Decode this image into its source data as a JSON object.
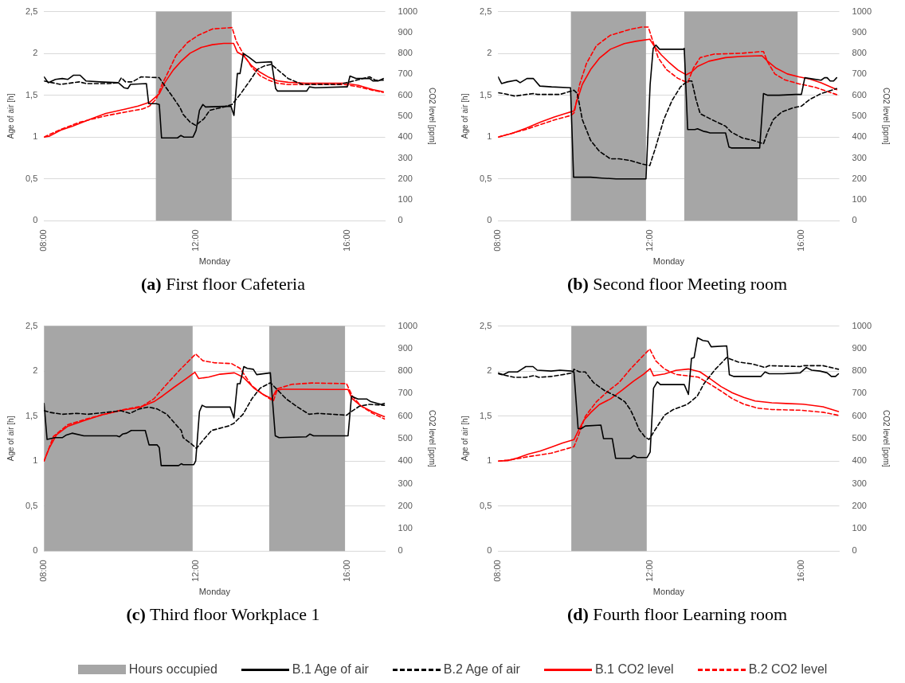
{
  "chart_data": [
    {
      "type": "line",
      "title": "(a) First floor Cafeteria",
      "xlabel": "Monday",
      "ylabel": "Age of air [h]",
      "y2label": "CO2 level [ppm]",
      "xlim": [
        8,
        17
      ],
      "xticks": [
        {
          "value": 8,
          "label": "08:00"
        },
        {
          "value": 12,
          "label": "12:00"
        },
        {
          "value": 16,
          "label": "16:00"
        }
      ],
      "ylim": [
        0,
        2.5
      ],
      "yticks": [
        0,
        {
          "value": 0.5,
          "label": "0,5"
        },
        1,
        {
          "value": 1.5,
          "label": "1,5"
        },
        2,
        {
          "value": 2.5,
          "label": "2,5"
        }
      ],
      "y2lim": [
        0,
        1000
      ],
      "y2ticks": [
        0,
        100,
        200,
        300,
        400,
        500,
        600,
        700,
        800,
        900,
        1000
      ],
      "grid": "y",
      "legend": "bottom",
      "bands": [
        {
          "axis": "x",
          "from": 10.95,
          "to": 12.95,
          "color": "#a6a6a6",
          "label": "Hours occupied"
        }
      ],
      "series": [
        {
          "name": "B.1 Age of air",
          "color": "#000000",
          "x": [
            8,
            8.11,
            8.3,
            8.48,
            8.63,
            8.78,
            8.95,
            9.11,
            9.48,
            9.96,
            10.11,
            10.21,
            10.28,
            10.7,
            10.76,
            10.96,
            11.04,
            11.1,
            11.52,
            11.61,
            11.69,
            11.93,
            12.01,
            12.1,
            12.19,
            12.26,
            12.93,
            13.01,
            13.1,
            13.17,
            13.26,
            13.42,
            13.59,
            14.0,
            14.11,
            14.16,
            14.93,
            15.0,
            15.15,
            15.93,
            16.0,
            16.07,
            16.24,
            16.59,
            16.68,
            16.81,
            16.95
          ],
          "values": [
            1.72,
            1.65,
            1.69,
            1.7,
            1.69,
            1.74,
            1.74,
            1.67,
            1.66,
            1.65,
            1.59,
            1.58,
            1.63,
            1.64,
            1.4,
            1.4,
            1.39,
            0.99,
            0.99,
            1.02,
            1.0,
            1.0,
            1.08,
            1.32,
            1.39,
            1.36,
            1.37,
            1.26,
            1.76,
            1.76,
            2.0,
            1.95,
            1.89,
            1.9,
            1.58,
            1.55,
            1.55,
            1.6,
            1.59,
            1.6,
            1.6,
            1.73,
            1.7,
            1.7,
            1.67,
            1.67,
            1.7
          ]
        },
        {
          "name": "B.2 Age of air",
          "color": "#000000",
          "line_style": "dashed",
          "x": [
            8,
            8.44,
            8.93,
            9.11,
            9.7,
            9.96,
            10.04,
            10.15,
            10.33,
            10.56,
            11.04,
            11.19,
            11.41,
            11.59,
            11.67,
            11.85,
            12.0,
            12.22,
            12.37,
            12.74,
            12.96,
            13.19,
            13.41,
            13.63,
            13.81,
            14.0,
            14.15,
            14.44,
            14.81,
            15.19,
            15.78,
            16.07,
            16.59,
            16.74,
            16.95
          ],
          "values": [
            1.67,
            1.63,
            1.66,
            1.64,
            1.64,
            1.65,
            1.71,
            1.66,
            1.66,
            1.72,
            1.71,
            1.61,
            1.47,
            1.35,
            1.27,
            1.18,
            1.14,
            1.22,
            1.32,
            1.36,
            1.39,
            1.52,
            1.66,
            1.81,
            1.85,
            1.87,
            1.81,
            1.7,
            1.63,
            1.63,
            1.63,
            1.66,
            1.72,
            1.68,
            1.68
          ]
        },
        {
          "name": "B.1 CO2 level",
          "color": "#ff0000",
          "axis": "y2",
          "x": [
            8,
            8.15,
            8.44,
            8.74,
            9.26,
            9.63,
            10.15,
            10.48,
            10.78,
            11.04,
            11.19,
            11.41,
            11.63,
            11.85,
            12.15,
            12.44,
            12.74,
            13.0,
            13.1,
            13.26,
            13.48,
            13.7,
            13.93,
            14.15,
            14.44,
            14.89,
            15.93,
            16.3,
            16.67,
            16.95
          ],
          "values": [
            400,
            405,
            433,
            451,
            488,
            513,
            534,
            548,
            566,
            607,
            662,
            721,
            765,
            801,
            829,
            842,
            848,
            848,
            806,
            790,
            741,
            710,
            686,
            669,
            662,
            658,
            658,
            647,
            627,
            617
          ]
        },
        {
          "name": "B.2 CO2 level",
          "color": "#ff0000",
          "line_style": "dashed",
          "axis": "y2",
          "x": [
            8,
            8.44,
            8.96,
            9.63,
            10.15,
            10.59,
            10.78,
            10.96,
            11.11,
            11.3,
            11.48,
            11.78,
            12.07,
            12.44,
            12.96,
            13.07,
            13.26,
            13.48,
            13.7,
            13.93,
            14.15,
            14.44,
            15.93,
            16.3,
            16.67,
            16.95
          ],
          "values": [
            400,
            437,
            472,
            502,
            520,
            534,
            548,
            582,
            651,
            721,
            790,
            852,
            887,
            917,
            924,
            859,
            797,
            734,
            693,
            672,
            658,
            651,
            651,
            640,
            624,
            614
          ]
        }
      ]
    },
    {
      "type": "line",
      "title": "(b) Second floor Meeting room",
      "xlabel": "Monday",
      "ylabel": "Age of air [h]",
      "y2label": "CO2 level [ppm]",
      "xlim": [
        8,
        17
      ],
      "xticks": [
        {
          "value": 8,
          "label": "08:00"
        },
        {
          "value": 12,
          "label": "12:00"
        },
        {
          "value": 16,
          "label": "16:00"
        }
      ],
      "ylim": [
        0,
        2.5
      ],
      "yticks": [
        0,
        {
          "value": 0.5,
          "label": "0,5"
        },
        1,
        {
          "value": 1.5,
          "label": "1,5"
        },
        2,
        {
          "value": 2.5,
          "label": "2,5"
        }
      ],
      "y2lim": [
        0,
        1000
      ],
      "y2ticks": [
        0,
        100,
        200,
        300,
        400,
        500,
        600,
        700,
        800,
        900,
        1000
      ],
      "grid": "y",
      "bands": [
        {
          "axis": "x",
          "from": 9.92,
          "to": 11.9,
          "color": "#a6a6a6"
        },
        {
          "axis": "x",
          "from": 12.91,
          "to": 15.9,
          "color": "#a6a6a6"
        }
      ],
      "series": [
        {
          "color": "#000000",
          "x": [
            8,
            8.09,
            8.24,
            8.48,
            8.58,
            8.76,
            8.93,
            9.1,
            9.41,
            9.91,
            9.99,
            10.44,
            10.74,
            11.11,
            11.9,
            12.01,
            12.09,
            12.16,
            12.26,
            12.89,
            12.91,
            13.0,
            13.19,
            13.26,
            13.41,
            13.52,
            13.59,
            14.0,
            14.09,
            14.15,
            14.9,
            15.0,
            15.11,
            15.41,
            15.85,
            16.0,
            16.09,
            16.22,
            16.52,
            16.61,
            16.68,
            16.76,
            16.85,
            16.93
          ],
          "values": [
            1.72,
            1.64,
            1.66,
            1.68,
            1.65,
            1.7,
            1.7,
            1.61,
            1.6,
            1.59,
            0.52,
            0.52,
            0.51,
            0.5,
            0.5,
            1.63,
            2.06,
            2.1,
            2.05,
            2.05,
            2.06,
            1.09,
            1.09,
            1.1,
            1.07,
            1.06,
            1.05,
            1.05,
            0.88,
            0.87,
            0.87,
            1.52,
            1.5,
            1.5,
            1.51,
            1.51,
            1.71,
            1.7,
            1.68,
            1.71,
            1.71,
            1.67,
            1.67,
            1.71
          ]
        },
        {
          "color": "#000000",
          "line_style": "dashed",
          "x": [
            8,
            8.15,
            8.44,
            8.74,
            8.93,
            9.04,
            9.63,
            10.0,
            10.09,
            10.22,
            10.44,
            10.67,
            10.96,
            11.19,
            11.48,
            11.78,
            12.0,
            12.15,
            12.37,
            12.59,
            12.81,
            13.0,
            13.11,
            13.22,
            13.33,
            13.63,
            14.0,
            14.15,
            14.44,
            14.74,
            15.0,
            15.11,
            15.26,
            15.48,
            15.78,
            16.0,
            16.22,
            16.52,
            16.93
          ],
          "values": [
            1.53,
            1.52,
            1.49,
            1.51,
            1.52,
            1.51,
            1.51,
            1.56,
            1.52,
            1.21,
            0.96,
            0.83,
            0.74,
            0.74,
            0.72,
            0.68,
            0.66,
            0.87,
            1.21,
            1.44,
            1.6,
            1.67,
            1.67,
            1.45,
            1.28,
            1.21,
            1.13,
            1.06,
            0.99,
            0.96,
            0.92,
            1.06,
            1.21,
            1.3,
            1.35,
            1.37,
            1.45,
            1.52,
            1.58
          ]
        },
        {
          "color": "#ff0000",
          "axis": "y2",
          "x": [
            8,
            8.37,
            8.74,
            9.11,
            9.48,
            9.78,
            10.0,
            10.07,
            10.22,
            10.44,
            10.67,
            10.96,
            11.33,
            11.63,
            12.0,
            12.11,
            12.3,
            12.52,
            12.74,
            12.96,
            13.11,
            13.26,
            13.56,
            14.0,
            14.44,
            14.96,
            15.11,
            15.33,
            15.63,
            15.93,
            16.22,
            16.52,
            16.93
          ],
          "values": [
            400,
            418,
            443,
            471,
            496,
            513,
            525,
            567,
            652,
            723,
            777,
            820,
            847,
            858,
            868,
            837,
            794,
            755,
            721,
            698,
            712,
            738,
            763,
            780,
            786,
            789,
            763,
            730,
            702,
            688,
            678,
            660,
            627
          ]
        },
        {
          "color": "#ff0000",
          "line_style": "dashed",
          "axis": "y2",
          "x": [
            8,
            8.74,
            9.48,
            9.93,
            10.01,
            10.15,
            10.33,
            10.59,
            10.96,
            11.48,
            11.78,
            11.96,
            12.07,
            12.22,
            12.44,
            12.74,
            13.0,
            13.15,
            13.33,
            13.7,
            14.44,
            14.93,
            15.0,
            15.11,
            15.3,
            15.56,
            15.93,
            16.37,
            16.93
          ],
          "values": [
            400,
            437,
            482,
            504,
            518,
            652,
            752,
            837,
            887,
            915,
            926,
            926,
            865,
            780,
            723,
            681,
            660,
            730,
            780,
            797,
            801,
            809,
            809,
            759,
            702,
            674,
            655,
            638,
            603
          ]
        }
      ]
    },
    {
      "type": "line",
      "title": "(c) Third floor Workplace 1",
      "xlabel": "Monday",
      "ylabel": "Age of air [h]",
      "y2label": "CO2 level [ppm]",
      "xlim": [
        8,
        17
      ],
      "xticks": [
        {
          "value": 8,
          "label": "08:00"
        },
        {
          "value": 12,
          "label": "12:00"
        },
        {
          "value": 16,
          "label": "16:00"
        }
      ],
      "ylim": [
        0,
        2.5
      ],
      "yticks": [
        0,
        {
          "value": 0.5,
          "label": "0,5"
        },
        1,
        {
          "value": 1.5,
          "label": "1,5"
        },
        2,
        {
          "value": 2.5,
          "label": "2,5"
        }
      ],
      "y2lim": [
        0,
        1000
      ],
      "y2ticks": [
        0,
        100,
        200,
        300,
        400,
        500,
        600,
        700,
        800,
        900,
        1000
      ],
      "grid": "y",
      "bands": [
        {
          "axis": "x",
          "from": 8,
          "to": 11.92,
          "color": "#a6a6a6"
        },
        {
          "axis": "x",
          "from": 13.94,
          "to": 15.94,
          "color": "#a6a6a6"
        }
      ],
      "series": [
        {
          "color": "#000000",
          "x": [
            8,
            8.08,
            8.29,
            8.48,
            8.59,
            8.74,
            9.05,
            9.92,
            9.99,
            10.07,
            10.18,
            10.3,
            10.67,
            10.77,
            10.98,
            11.04,
            11.09,
            11.55,
            11.62,
            11.67,
            11.95,
            12.0,
            12.1,
            12.17,
            12.27,
            12.91,
            13.01,
            13.1,
            13.17,
            13.27,
            13.36,
            13.52,
            13.61,
            13.97,
            14.1,
            14.2,
            14.92,
            15.01,
            15.11,
            16.02,
            16.11,
            16.28,
            16.51,
            16.62,
            16.89,
            16.98
          ],
          "values": [
            1.64,
            1.24,
            1.26,
            1.26,
            1.29,
            1.31,
            1.28,
            1.28,
            1.27,
            1.3,
            1.31,
            1.34,
            1.34,
            1.18,
            1.18,
            1.15,
            0.95,
            0.95,
            0.97,
            0.96,
            0.96,
            1.0,
            1.55,
            1.62,
            1.6,
            1.6,
            1.48,
            1.86,
            1.86,
            2.05,
            2.03,
            2.02,
            1.96,
            1.98,
            1.28,
            1.26,
            1.27,
            1.3,
            1.28,
            1.28,
            1.72,
            1.69,
            1.69,
            1.66,
            1.63,
            1.64
          ]
        },
        {
          "color": "#000000",
          "line_style": "dashed",
          "x": [
            8,
            8.17,
            8.48,
            8.86,
            9.16,
            9.84,
            10.03,
            10.26,
            10.52,
            10.75,
            10.98,
            11.24,
            11.51,
            11.62,
            11.67,
            11.89,
            12.02,
            12.19,
            12.42,
            12.87,
            13.01,
            13.25,
            13.48,
            13.7,
            13.97,
            14.16,
            14.39,
            14.69,
            14.99,
            15.22,
            15.6,
            15.98,
            16.11,
            16.32,
            16.58,
            16.98
          ],
          "values": [
            1.56,
            1.54,
            1.52,
            1.53,
            1.52,
            1.55,
            1.56,
            1.53,
            1.58,
            1.6,
            1.58,
            1.52,
            1.39,
            1.34,
            1.26,
            1.19,
            1.14,
            1.23,
            1.34,
            1.39,
            1.42,
            1.52,
            1.69,
            1.81,
            1.87,
            1.79,
            1.69,
            1.6,
            1.52,
            1.53,
            1.52,
            1.51,
            1.55,
            1.61,
            1.63,
            1.62
          ]
        },
        {
          "color": "#ff0000",
          "axis": "y2",
          "x": [
            8,
            8.14,
            8.33,
            8.63,
            9.08,
            9.54,
            10.07,
            10.52,
            10.9,
            11.13,
            11.43,
            11.73,
            11.98,
            12.08,
            12.34,
            12.64,
            13.02,
            13.25,
            13.55,
            13.78,
            14.01,
            14.12,
            14.27,
            14.84,
            15.52,
            16.02,
            16.13,
            16.36,
            16.66,
            16.98
          ],
          "values": [
            400,
            459,
            517,
            555,
            581,
            606,
            626,
            638,
            664,
            690,
            728,
            764,
            795,
            767,
            773,
            786,
            792,
            773,
            722,
            696,
            677,
            713,
            719,
            719,
            718,
            718,
            677,
            645,
            619,
            597
          ]
        },
        {
          "color": "#ff0000",
          "line_style": "dashed",
          "axis": "y2",
          "x": [
            8,
            8.25,
            8.63,
            9.08,
            9.54,
            10.07,
            10.6,
            10.9,
            11.2,
            11.58,
            12.0,
            12.19,
            12.49,
            12.95,
            13.17,
            13.48,
            13.78,
            14.05,
            14.16,
            14.54,
            15.07,
            15.98,
            16.13,
            16.36,
            16.66,
            16.98
          ],
          "values": [
            400,
            510,
            562,
            585,
            606,
            628,
            645,
            677,
            735,
            805,
            876,
            846,
            837,
            833,
            812,
            735,
            696,
            667,
            722,
            741,
            747,
            744,
            690,
            645,
            613,
            587
          ]
        }
      ]
    },
    {
      "type": "line",
      "title": "(d) Fourth floor Learning room",
      "xlabel": "Monday",
      "ylabel": "Age of air [h]",
      "y2label": "CO2 level [ppm]",
      "xlim": [
        8,
        17
      ],
      "xticks": [
        {
          "value": 8,
          "label": "08:00"
        },
        {
          "value": 12,
          "label": "12:00"
        },
        {
          "value": 16,
          "label": "16:00"
        }
      ],
      "ylim": [
        0,
        2.5
      ],
      "yticks": [
        0,
        {
          "value": 0.5,
          "label": "0,5"
        },
        1,
        {
          "value": 1.5,
          "label": "1,5"
        },
        2,
        {
          "value": 2.5,
          "label": "2,5"
        }
      ],
      "y2lim": [
        0,
        1000
      ],
      "y2ticks": [
        0,
        100,
        200,
        300,
        400,
        500,
        600,
        700,
        800,
        900,
        1000
      ],
      "grid": "y",
      "bands": [
        {
          "axis": "x",
          "from": 9.93,
          "to": 11.92,
          "color": "#a6a6a6"
        }
      ],
      "series": [
        {
          "color": "#000000",
          "x": [
            8,
            8.13,
            8.28,
            8.51,
            8.62,
            8.73,
            8.92,
            9.03,
            9.4,
            9.63,
            9.93,
            10.0,
            10.11,
            10.19,
            10.3,
            10.71,
            10.78,
            11.01,
            11.1,
            11.49,
            11.58,
            11.66,
            11.93,
            12.01,
            12.1,
            12.2,
            12.28,
            12.91,
            13.02,
            13.1,
            13.17,
            13.26,
            13.4,
            13.54,
            13.62,
            14.03,
            14.1,
            14.22,
            14.93,
            15.04,
            15.15,
            15.52,
            15.97,
            16.13,
            16.27,
            16.49,
            16.68,
            16.79,
            16.9,
            16.98
          ],
          "values": [
            1.98,
            1.96,
            1.99,
            1.99,
            2.02,
            2.05,
            2.05,
            2.01,
            2.0,
            2.01,
            2.0,
            1.99,
            1.36,
            1.36,
            1.39,
            1.4,
            1.25,
            1.25,
            1.03,
            1.03,
            1.06,
            1.04,
            1.04,
            1.1,
            1.81,
            1.88,
            1.85,
            1.85,
            1.74,
            2.14,
            2.15,
            2.37,
            2.34,
            2.33,
            2.27,
            2.28,
            1.96,
            1.94,
            1.94,
            1.99,
            1.97,
            1.97,
            1.98,
            2.04,
            2.01,
            2.0,
            1.98,
            1.94,
            1.94,
            1.97
          ]
        },
        {
          "color": "#000000",
          "line_style": "dashed",
          "x": [
            8,
            8.21,
            8.43,
            8.73,
            8.96,
            9.07,
            9.4,
            9.7,
            9.96,
            10.0,
            10.15,
            10.3,
            10.52,
            10.82,
            11.12,
            11.34,
            11.49,
            11.6,
            11.72,
            11.87,
            11.98,
            12.16,
            12.39,
            12.61,
            12.99,
            13.25,
            13.43,
            13.73,
            14.03,
            14.33,
            14.7,
            15.04,
            15.15,
            15.97,
            16.06,
            16.57,
            16.98
          ],
          "values": [
            1.97,
            1.95,
            1.93,
            1.93,
            1.95,
            1.93,
            1.94,
            1.96,
            1.98,
            2.02,
            1.99,
            1.99,
            1.87,
            1.78,
            1.72,
            1.66,
            1.57,
            1.47,
            1.35,
            1.27,
            1.24,
            1.36,
            1.51,
            1.57,
            1.63,
            1.72,
            1.86,
            2.02,
            2.15,
            2.1,
            2.08,
            2.04,
            2.06,
            2.05,
            2.06,
            2.06,
            2.02
          ]
        },
        {
          "color": "#ff0000",
          "axis": "y2",
          "x": [
            8,
            8.25,
            8.51,
            8.81,
            9.1,
            9.4,
            9.7,
            10.0,
            10.11,
            10.26,
            10.45,
            10.67,
            10.97,
            11.27,
            11.57,
            11.83,
            12.01,
            12.1,
            12.39,
            12.69,
            13.02,
            13.32,
            13.58,
            13.88,
            14.18,
            14.48,
            14.78,
            15.22,
            15.6,
            16.04,
            16.57,
            16.98
          ],
          "values": [
            400,
            402,
            414,
            432,
            444,
            462,
            480,
            495,
            533,
            581,
            617,
            651,
            677,
            715,
            755,
            785,
            811,
            779,
            787,
            803,
            809,
            797,
            767,
            731,
            703,
            683,
            667,
            659,
            656,
            653,
            641,
            620
          ]
        },
        {
          "color": "#ff0000",
          "line_style": "dashed",
          "axis": "y2",
          "x": [
            8,
            8.36,
            8.81,
            9.4,
            10.0,
            10.11,
            10.3,
            10.6,
            10.9,
            11.19,
            11.49,
            11.79,
            12.0,
            12.16,
            12.39,
            12.69,
            12.99,
            13.28,
            13.58,
            13.88,
            14.18,
            14.48,
            14.85,
            15.22,
            15.97,
            16.57,
            16.98
          ],
          "values": [
            400,
            406,
            420,
            435,
            464,
            510,
            599,
            665,
            711,
            749,
            809,
            862,
            898,
            845,
            809,
            785,
            779,
            773,
            743,
            711,
            677,
            653,
            635,
            629,
            626,
            617,
            603
          ]
        }
      ]
    }
  ]
}
